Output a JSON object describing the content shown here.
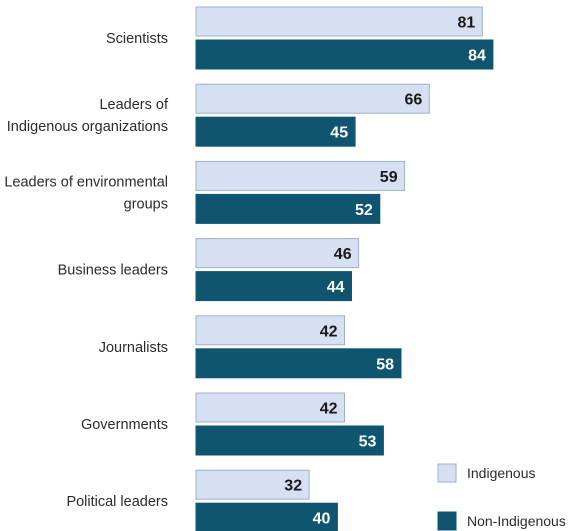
{
  "chart_data": {
    "type": "bar",
    "orientation": "horizontal",
    "title": "",
    "xlabel": "",
    "ylabel": "",
    "xlim": [
      0,
      100
    ],
    "grid": false,
    "legend_position": "bottom-right",
    "categories": [
      [
        "Scientists"
      ],
      [
        "Leaders of",
        "Indigenous organizations"
      ],
      [
        "Leaders of environmental",
        "groups"
      ],
      [
        "Business leaders"
      ],
      [
        "Journalists"
      ],
      [
        "Governments"
      ],
      [
        "Political leaders"
      ]
    ],
    "series": [
      {
        "name": "Indigenous",
        "color": "#d6e0f2",
        "stroke": "#9fb0c8",
        "label_color": "#1a1a1a",
        "values": [
          81,
          66,
          59,
          46,
          42,
          42,
          32
        ]
      },
      {
        "name": "Non-Indigenous",
        "color": "#0f5570",
        "stroke": "#0f5570",
        "label_color": "#ffffff",
        "values": [
          84,
          45,
          52,
          44,
          58,
          53,
          40
        ]
      }
    ]
  }
}
